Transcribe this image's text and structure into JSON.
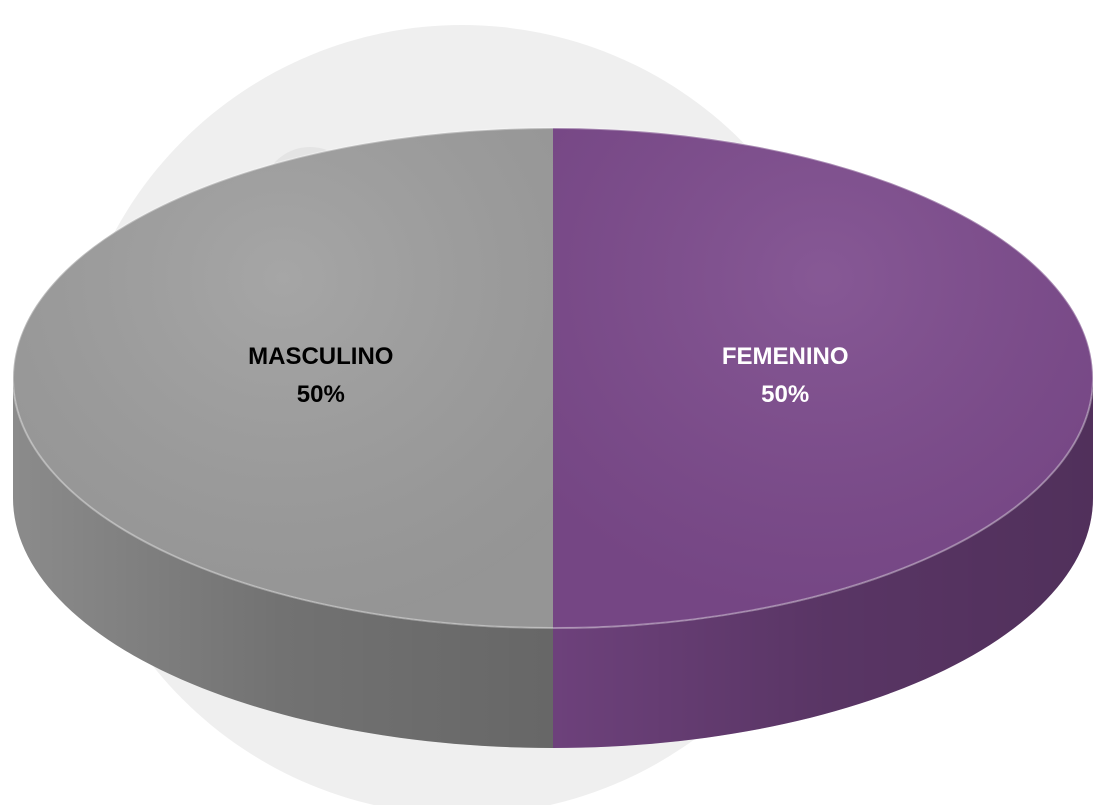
{
  "chart_data": {
    "type": "pie3d",
    "categories": [
      "MASCULINO",
      "FEMENINO"
    ],
    "values": [
      50,
      50
    ],
    "value_labels": [
      "50%",
      "50%"
    ],
    "colors": [
      "#9e9e9e",
      "#7c4a8c"
    ],
    "label_colors": [
      "#000000",
      "#ffffff"
    ]
  }
}
